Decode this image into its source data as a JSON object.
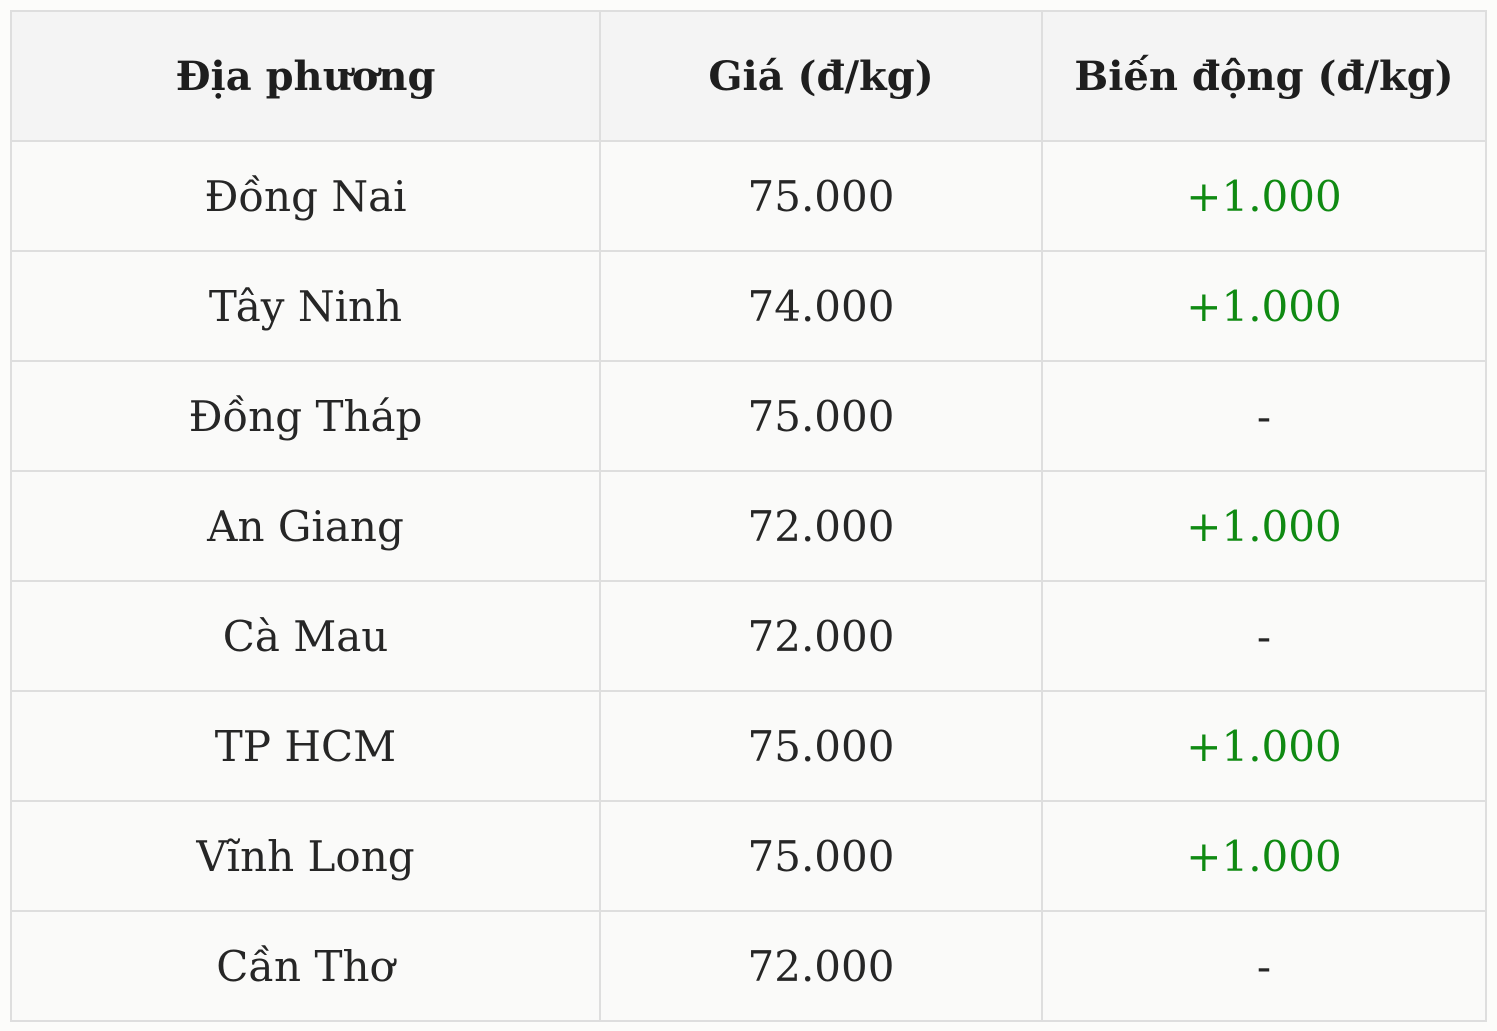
{
  "table": {
    "headers": [
      "Địa phương",
      "Giá (đ/kg)",
      "Biến động (đ/kg)"
    ],
    "rows": [
      [
        "Đồng Nai",
        "75.000",
        "+1.000"
      ],
      [
        "Tây Ninh",
        "74.000",
        "+1.000"
      ],
      [
        "Đồng Tháp",
        "75.000",
        "-"
      ],
      [
        "An Giang",
        "72.000",
        "+1.000"
      ],
      [
        "Cà Mau",
        "72.000",
        "-"
      ],
      [
        "TP HCM",
        "75.000",
        "+1.000"
      ],
      [
        "Vĩnh Long",
        "75.000",
        "+1.000"
      ],
      [
        "Cần Thơ",
        "72.000",
        "-"
      ]
    ]
  },
  "colors": {
    "increase": "#0f8a12",
    "header_bg": "#f4f4f4",
    "border": "#dedede"
  }
}
